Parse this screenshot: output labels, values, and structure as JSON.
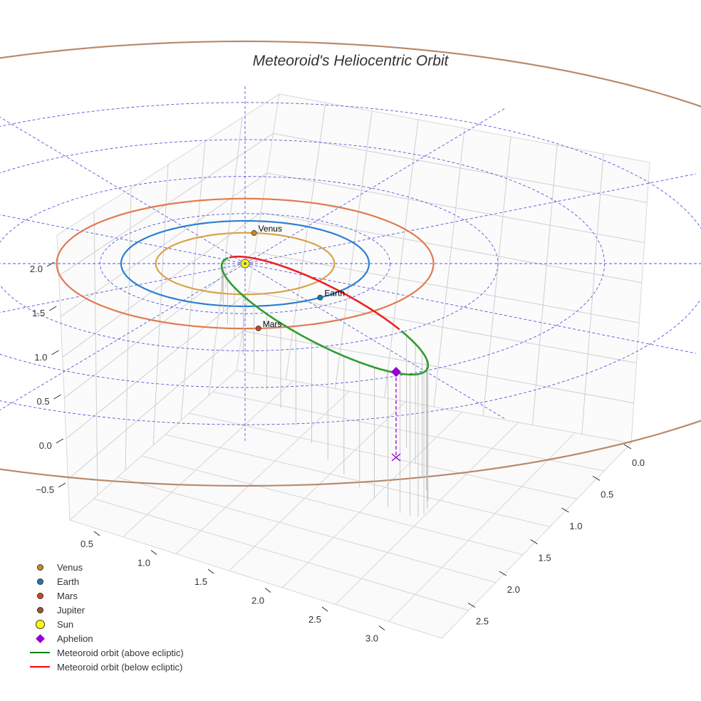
{
  "chart_data": {
    "type": "3d-line",
    "title": "Meteoroid's Heliocentric Orbit",
    "z_ticks": [
      "−0.5",
      "0.0",
      "0.5",
      "1.0",
      "1.5",
      "2.0"
    ],
    "x_ticks": [
      "0.5",
      "1.0",
      "1.5",
      "2.0",
      "2.5",
      "3.0"
    ],
    "y_ticks": [
      "0.0",
      "0.5",
      "1.0",
      "1.5",
      "2.0",
      "2.5"
    ],
    "planets": [
      {
        "name": "Venus",
        "orbit_radius_au": 0.72,
        "color": "#d08a1e",
        "orbit_color": "#d9a24a",
        "label": "Venus"
      },
      {
        "name": "Earth",
        "orbit_radius_au": 1.0,
        "color": "#1f77b4",
        "orbit_color": "#2c7fd0",
        "label": "Earth"
      },
      {
        "name": "Mars",
        "orbit_radius_au": 1.52,
        "color": "#cc4a1a",
        "orbit_color": "#e07a50",
        "label": "Mars"
      },
      {
        "name": "Jupiter",
        "orbit_radius_au": 5.2,
        "color": "#a0522d",
        "orbit_color": "#b8896a"
      }
    ],
    "sun": {
      "label": "Sun",
      "color": "#ffff00"
    },
    "aphelion": {
      "label": "Aphelion",
      "color": "#9400d3"
    },
    "meteoroid": {
      "above_label": "Meteoroid orbit (above ecliptic)",
      "below_label": "Meteoroid orbit (below ecliptic)",
      "above_color": "#2e9c2e",
      "below_color": "#ee2222"
    },
    "legend": [
      {
        "label": "Venus",
        "marker": "circle",
        "color": "#d08a1e"
      },
      {
        "label": "Earth",
        "marker": "circle",
        "color": "#1f77b4"
      },
      {
        "label": "Mars",
        "marker": "circle",
        "color": "#cc4a1a"
      },
      {
        "label": "Jupiter",
        "marker": "circle",
        "color": "#a0522d"
      },
      {
        "label": "Sun",
        "marker": "circle-large",
        "color": "#ffff00"
      },
      {
        "label": "Aphelion",
        "marker": "diamond",
        "color": "#9400d3"
      },
      {
        "label": "Meteoroid orbit (above ecliptic)",
        "marker": "line",
        "color": "#008000"
      },
      {
        "label": "Meteoroid orbit (below ecliptic)",
        "marker": "line",
        "color": "#ff0000"
      }
    ]
  }
}
